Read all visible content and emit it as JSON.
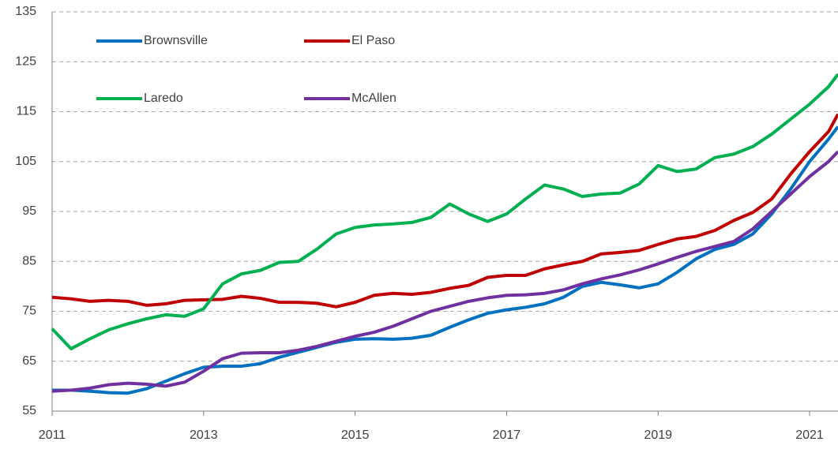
{
  "chart_data": {
    "type": "line",
    "x": [
      2011,
      2011.25,
      2011.5,
      2011.75,
      2012,
      2012.25,
      2012.5,
      2012.75,
      2013,
      2013.25,
      2013.5,
      2013.75,
      2014,
      2014.25,
      2014.5,
      2014.75,
      2015,
      2015.25,
      2015.5,
      2015.75,
      2016,
      2016.25,
      2016.5,
      2016.75,
      2017,
      2017.25,
      2017.5,
      2017.75,
      2018,
      2018.25,
      2018.5,
      2018.75,
      2019,
      2019.25,
      2019.5,
      2019.75,
      2020,
      2020.25,
      2020.5,
      2020.75,
      2021,
      2021.25,
      2021.375
    ],
    "series": [
      {
        "name": "Brownsville",
        "color": "#0070c0",
        "values": [
          59.2,
          59.2,
          59.0,
          58.7,
          58.6,
          59.5,
          61.0,
          62.5,
          63.8,
          64.0,
          64.0,
          64.5,
          65.8,
          66.8,
          67.8,
          68.8,
          69.4,
          69.5,
          69.4,
          69.6,
          70.2,
          71.8,
          73.3,
          74.6,
          75.3,
          75.8,
          76.5,
          77.8,
          80.0,
          80.8,
          80.3,
          79.7,
          80.5,
          82.8,
          85.5,
          87.4,
          88.4,
          90.5,
          94.5,
          99.5,
          105,
          109.5,
          112
        ]
      },
      {
        "name": "El Paso",
        "color": "#c00000",
        "values": [
          77.8,
          77.5,
          77.0,
          77.2,
          77.0,
          76.2,
          76.5,
          77.2,
          77.3,
          77.4,
          78.0,
          77.6,
          76.8,
          76.8,
          76.6,
          75.9,
          76.8,
          78.2,
          78.6,
          78.4,
          78.8,
          79.6,
          80.2,
          81.8,
          82.2,
          82.2,
          83.5,
          84.3,
          85.0,
          86.5,
          86.8,
          87.2,
          88.4,
          89.5,
          90.0,
          91.2,
          93.2,
          94.8,
          97.5,
          102.5,
          107,
          111,
          114.5
        ]
      },
      {
        "name": "Laredo",
        "color": "#00b050",
        "values": [
          71.5,
          67.5,
          69.5,
          71.3,
          72.5,
          73.5,
          74.3,
          74.0,
          75.5,
          80.5,
          82.5,
          83.2,
          84.8,
          85.0,
          87.5,
          90.5,
          91.8,
          92.3,
          92.5,
          92.8,
          93.8,
          96.5,
          94.5,
          93.0,
          94.5,
          97.5,
          100.3,
          99.5,
          98.0,
          98.5,
          98.7,
          100.5,
          104.2,
          103.0,
          103.5,
          105.8,
          106.5,
          108.0,
          110.5,
          113.5,
          116.5,
          120,
          122.5
        ]
      },
      {
        "name": "McAllen",
        "color": "#7030a0",
        "values": [
          59.0,
          59.2,
          59.6,
          60.3,
          60.6,
          60.4,
          60.0,
          60.8,
          63.0,
          65.5,
          66.6,
          66.7,
          66.7,
          67.2,
          68.0,
          69.0,
          70.0,
          70.8,
          72.0,
          73.5,
          75.0,
          76.0,
          77.0,
          77.7,
          78.2,
          78.3,
          78.6,
          79.3,
          80.5,
          81.5,
          82.3,
          83.3,
          84.5,
          85.8,
          87.0,
          88.0,
          89.0,
          91.5,
          95.0,
          98.5,
          102,
          105,
          107
        ]
      }
    ],
    "xlim": [
      2011,
      2021.375
    ],
    "xticks": [
      2011,
      2013,
      2015,
      2017,
      2019,
      2021
    ],
    "ylim": [
      55,
      135
    ],
    "yticks": [
      55,
      65,
      75,
      85,
      95,
      105,
      115,
      125,
      135
    ],
    "grid": true,
    "legend": "top-left"
  }
}
